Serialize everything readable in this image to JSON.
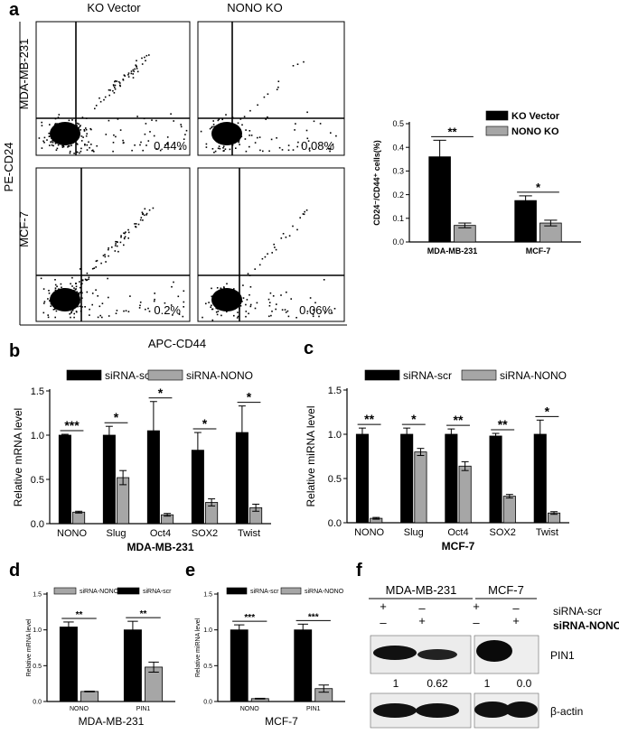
{
  "panel_labels": [
    "a",
    "b",
    "c",
    "d",
    "e",
    "f"
  ],
  "flow": {
    "col_titles": [
      "KO Vector",
      "NONO KO"
    ],
    "row_labels": [
      "MDA-MB-231",
      "MCF-7"
    ],
    "y_axis": "PE-CD24",
    "x_axis": "APC-CD44",
    "percents": [
      "0.44%",
      "0.08%",
      "0.2%",
      "0.06%"
    ]
  },
  "blot": {
    "headers": [
      "MDA-MB-231",
      "MCF-7"
    ],
    "row_labels": [
      "siRNA-scr",
      "siRNA-NONO"
    ],
    "plus": "+",
    "minus": "–",
    "proteins": [
      "PIN1",
      "β-actin"
    ],
    "quant": [
      "1",
      "0.62",
      "1",
      "0.0"
    ]
  },
  "chart_data": [
    {
      "id": "a",
      "type": "bar",
      "categories": [
        "MDA-MB-231",
        "MCF-7"
      ],
      "series": [
        {
          "name": "KO Vector",
          "values": [
            0.36,
            0.175
          ],
          "errors": [
            0.07,
            0.02
          ],
          "color": "#000000"
        },
        {
          "name": "NONO KO",
          "values": [
            0.07,
            0.08
          ],
          "errors": [
            0.01,
            0.012
          ],
          "color": "#a6a6a6"
        }
      ],
      "ylabel": "CD24⁻/CD44⁺ cells(%)",
      "ylim": [
        0,
        0.5
      ],
      "yticks": [
        "0.0",
        "0.1",
        "0.2",
        "0.3",
        "0.4",
        "0.5"
      ],
      "significance": [
        "**",
        "*"
      ],
      "legend": "top-right"
    },
    {
      "id": "b",
      "type": "bar",
      "categories": [
        "NONO",
        "Slug",
        "Oct4",
        "SOX2",
        "Twist"
      ],
      "series": [
        {
          "name": "siRNA-scr",
          "values": [
            1.0,
            1.0,
            1.05,
            0.83,
            1.03
          ],
          "errors": [
            0.01,
            0.1,
            0.33,
            0.2,
            0.3
          ],
          "color": "#000000"
        },
        {
          "name": "siRNA-NONO",
          "values": [
            0.13,
            0.52,
            0.1,
            0.24,
            0.18
          ],
          "errors": [
            0.01,
            0.08,
            0.015,
            0.04,
            0.04
          ],
          "color": "#a6a6a6"
        }
      ],
      "ylabel": "Relative mRNA level",
      "xlabel": "MDA-MB-231",
      "ylim": [
        0,
        1.5
      ],
      "yticks": [
        "0.0",
        "0.5",
        "1.0",
        "1.5"
      ],
      "significance": [
        "***",
        "*",
        "*",
        "*",
        "*"
      ],
      "legend": "top"
    },
    {
      "id": "c",
      "type": "bar",
      "categories": [
        "NONO",
        "Slug",
        "Oct4",
        "SOX2",
        "Twist"
      ],
      "series": [
        {
          "name": "siRNA-scr",
          "values": [
            1.0,
            1.0,
            1.0,
            0.98,
            1.0
          ],
          "errors": [
            0.07,
            0.07,
            0.06,
            0.03,
            0.16
          ],
          "color": "#000000"
        },
        {
          "name": "siRNA-NONO",
          "values": [
            0.05,
            0.8,
            0.64,
            0.3,
            0.11
          ],
          "errors": [
            0.01,
            0.04,
            0.05,
            0.02,
            0.015
          ],
          "color": "#a6a6a6"
        }
      ],
      "ylabel": "Relative miRNA level",
      "xlabel": "MCF-7",
      "ylim": [
        0,
        1.5
      ],
      "yticks": [
        "0.0",
        "0.5",
        "1.0",
        "1.5"
      ],
      "significance": [
        "**",
        "*",
        "**",
        "**",
        "*"
      ],
      "legend": "top"
    },
    {
      "id": "d",
      "type": "bar",
      "categories": [
        "NONO",
        "PIN1"
      ],
      "series": [
        {
          "name": "siRNA-scr",
          "values": [
            1.04,
            1.0
          ],
          "errors": [
            0.07,
            0.12
          ],
          "color": "#000000"
        },
        {
          "name": "siRNA-NONO",
          "values": [
            0.14,
            0.48
          ],
          "errors": [
            0.005,
            0.07
          ],
          "color": "#a6a6a6"
        }
      ],
      "legend_order": [
        "siRNA-NONO",
        "siRNA-scr"
      ],
      "ylabel": "Relative mRNA level",
      "xlabel": "MDA-MB-231",
      "ylim": [
        0,
        1.5
      ],
      "yticks": [
        "0.0",
        "0.5",
        "1.0",
        "1.5"
      ],
      "significance": [
        "**",
        "**"
      ],
      "legend": "top"
    },
    {
      "id": "e",
      "type": "bar",
      "categories": [
        "NONO",
        "PIN1"
      ],
      "series": [
        {
          "name": "siRNA-scr",
          "values": [
            1.0,
            1.0
          ],
          "errors": [
            0.07,
            0.08
          ],
          "color": "#000000"
        },
        {
          "name": "siRNA-NONO",
          "values": [
            0.04,
            0.18
          ],
          "errors": [
            0.005,
            0.05
          ],
          "color": "#a6a6a6"
        }
      ],
      "ylabel": "Relative miRNA level",
      "xlabel": "MCF-7",
      "ylim": [
        0,
        1.5
      ],
      "yticks": [
        "0.0",
        "0.5",
        "1.0",
        "1.5"
      ],
      "significance": [
        "***",
        "***"
      ],
      "legend": "top"
    }
  ]
}
